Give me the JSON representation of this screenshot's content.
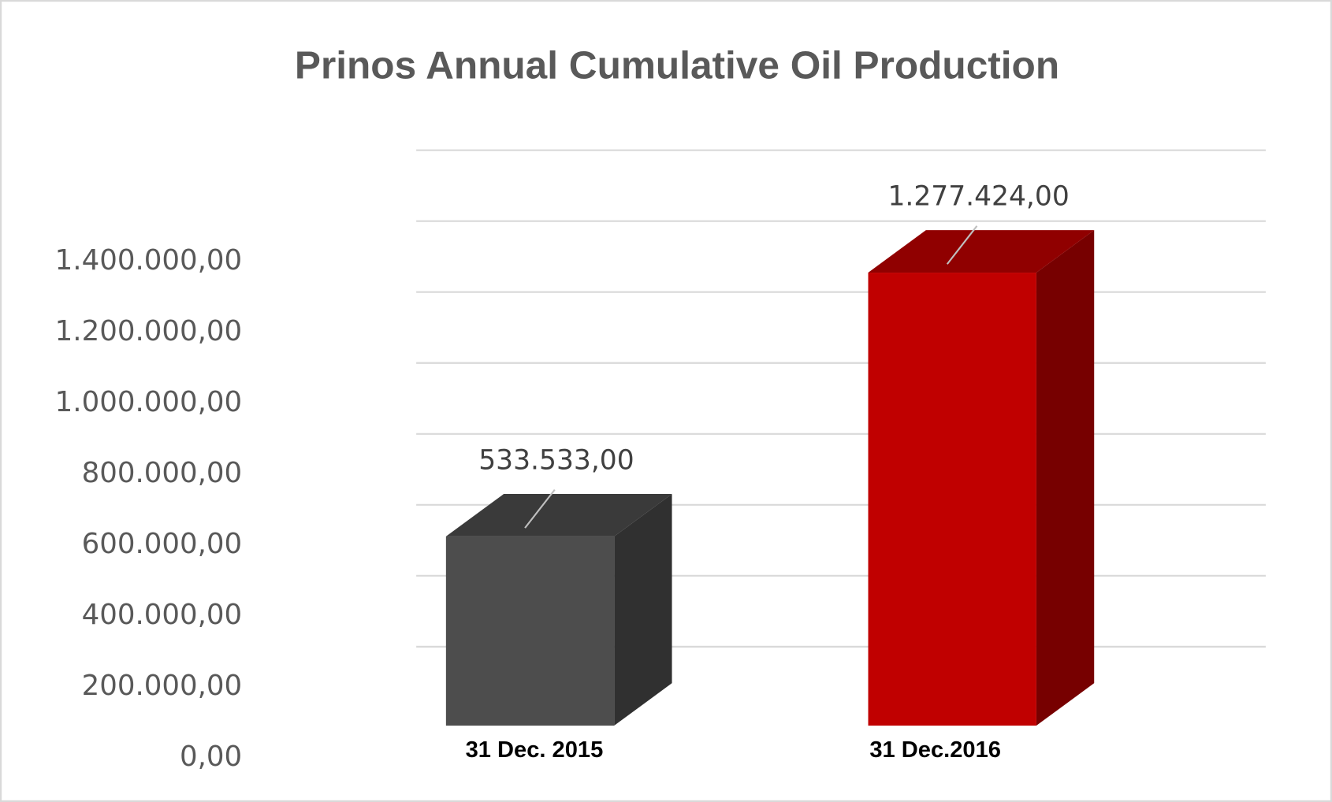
{
  "chart_data": {
    "type": "bar3d",
    "title": "Prinos Annual Cumulative Oil Production",
    "categories": [
      "31 Dec. 2015",
      "31 Dec.2016"
    ],
    "values": [
      533533,
      1277424
    ],
    "value_labels": [
      "533.533,00",
      "1.277.424,00"
    ],
    "colors": [
      "#4d4d4d",
      "#c00000"
    ],
    "ylim": [
      0,
      1400000
    ],
    "yticks": [
      {
        "value": 0,
        "label": "0,00"
      },
      {
        "value": 200000,
        "label": "200.000,00"
      },
      {
        "value": 400000,
        "label": "400.000,00"
      },
      {
        "value": 600000,
        "label": "600.000,00"
      },
      {
        "value": 800000,
        "label": "800.000,00"
      },
      {
        "value": 1000000,
        "label": "1.000.000,00"
      },
      {
        "value": 1200000,
        "label": "1.200.000,00"
      },
      {
        "value": 1400000,
        "label": "1.400.000,00"
      }
    ],
    "grid": true
  }
}
